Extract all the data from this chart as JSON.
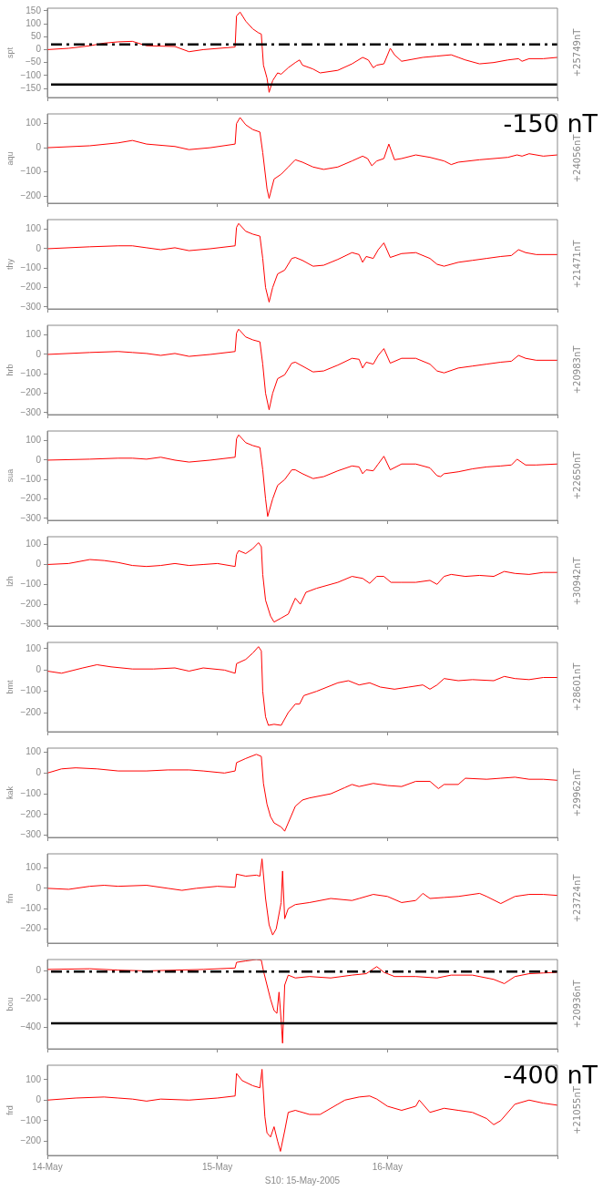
{
  "chart_data": [
    {
      "type": "line",
      "ylabel": "spt",
      "y2label": "+25749nT",
      "color": "#ff0000",
      "xlim": [
        "2005-05-14",
        "2005-05-17"
      ],
      "xticks": [
        {
          "value": "2005-05-14",
          "label": null
        },
        {
          "value": "2005-05-15",
          "label": null
        },
        {
          "value": "2005-05-16",
          "label": null
        },
        {
          "value": "2005-05-17",
          "label": null
        }
      ],
      "ylim": [
        -185,
        160
      ],
      "yticks": [
        -150,
        -100,
        -50,
        0,
        50,
        100,
        150
      ],
      "tick_labels": "y",
      "ref_lines": [
        {
          "axis": "y",
          "value": 20,
          "color": "#000000",
          "line_style": "dashdot"
        },
        {
          "axis": "y",
          "value": -135,
          "color": "#000000",
          "line_style": "solid",
          "label": "-150 nT"
        }
      ],
      "x": [
        "2005-05-14T00:00",
        "2005-05-14T03:00",
        "2005-05-14T06:00",
        "2005-05-14T08:00",
        "2005-05-14T10:00",
        "2005-05-14T12:00",
        "2005-05-14T14:00",
        "2005-05-14T18:00",
        "2005-05-14T20:00",
        "2005-05-14T22:00",
        "2005-05-15T02:30",
        "2005-05-15T02:42",
        "2005-05-15T03:12",
        "2005-05-15T04:00",
        "2005-05-15T05:00",
        "2005-05-15T05:48",
        "2005-05-15T06:12",
        "2005-05-15T06:30",
        "2005-05-15T07:00",
        "2005-05-15T07:18",
        "2005-05-15T07:48",
        "2005-05-15T08:30",
        "2005-05-15T09:00",
        "2005-05-15T10:00",
        "2005-05-15T11:00",
        "2005-05-15T11:36",
        "2005-05-15T12:00",
        "2005-05-15T13:30",
        "2005-05-15T14:30",
        "2005-05-15T17:00",
        "2005-05-15T19:00",
        "2005-05-15T20:30",
        "2005-05-15T21:18",
        "2005-05-15T22:00",
        "2005-05-15T22:30",
        "2005-05-15T23:30",
        "2005-05-16T00:24",
        "2005-05-16T01:00",
        "2005-05-16T02:00",
        "2005-05-16T05:00",
        "2005-05-16T07:00",
        "2005-05-16T09:00",
        "2005-05-16T10:00",
        "2005-05-16T11:00",
        "2005-05-16T13:00",
        "2005-05-16T15:00",
        "2005-05-16T17:00",
        "2005-05-16T18:30",
        "2005-05-16T19:00",
        "2005-05-16T20:00",
        "2005-05-16T22:00",
        "2005-05-17T00:00"
      ],
      "values": [
        0,
        5,
        15,
        25,
        30,
        32,
        15,
        12,
        -8,
        0,
        10,
        130,
        145,
        110,
        80,
        65,
        60,
        -60,
        -110,
        -165,
        -120,
        -90,
        -95,
        -70,
        -50,
        -40,
        -60,
        -75,
        -90,
        -80,
        -55,
        -30,
        -40,
        -70,
        -60,
        -55,
        5,
        -20,
        -45,
        -30,
        -25,
        -20,
        -30,
        -40,
        -55,
        -50,
        -40,
        -35,
        -45,
        -35,
        -35,
        -30
      ]
    },
    {
      "type": "line",
      "ylabel": "aqu",
      "y2label": "+24056nT",
      "color": "#ff0000",
      "xlim": [
        "2005-05-14",
        "2005-05-17"
      ],
      "xticks": [
        {
          "value": "2005-05-14",
          "label": null
        },
        {
          "value": "2005-05-15",
          "label": null
        },
        {
          "value": "2005-05-16",
          "label": null
        },
        {
          "value": "2005-05-17",
          "label": null
        }
      ],
      "ylim": [
        -230,
        140
      ],
      "yticks": [
        -200,
        -100,
        0,
        100
      ],
      "tick_labels": "y",
      "x": [
        "2005-05-14T00:00",
        "2005-05-14T06:00",
        "2005-05-14T10:00",
        "2005-05-14T12:00",
        "2005-05-14T14:00",
        "2005-05-14T18:00",
        "2005-05-14T20:00",
        "2005-05-14T23:00",
        "2005-05-15T02:30",
        "2005-05-15T02:42",
        "2005-05-15T03:12",
        "2005-05-15T04:00",
        "2005-05-15T05:00",
        "2005-05-15T06:00",
        "2005-05-15T06:24",
        "2005-05-15T07:00",
        "2005-05-15T07:18",
        "2005-05-15T08:00",
        "2005-05-15T09:00",
        "2005-05-15T10:00",
        "2005-05-15T11:00",
        "2005-05-15T12:00",
        "2005-05-15T13:30",
        "2005-05-15T15:00",
        "2005-05-15T17:00",
        "2005-05-15T19:00",
        "2005-05-15T20:30",
        "2005-05-15T21:12",
        "2005-05-15T21:48",
        "2005-05-15T22:30",
        "2005-05-15T23:30",
        "2005-05-16T00:12",
        "2005-05-16T01:00",
        "2005-05-16T02:00",
        "2005-05-16T04:00",
        "2005-05-16T06:00",
        "2005-05-16T08:00",
        "2005-05-16T09:00",
        "2005-05-16T10:00",
        "2005-05-16T13:00",
        "2005-05-16T15:00",
        "2005-05-16T17:00",
        "2005-05-16T18:18",
        "2005-05-16T19:00",
        "2005-05-16T20:00",
        "2005-05-16T22:00",
        "2005-05-17T00:00"
      ],
      "values": [
        0,
        8,
        20,
        30,
        15,
        5,
        -8,
        0,
        15,
        100,
        125,
        95,
        75,
        65,
        -20,
        -170,
        -210,
        -130,
        -110,
        -80,
        -50,
        -60,
        -80,
        -90,
        -80,
        -55,
        -35,
        -45,
        -75,
        -55,
        -45,
        15,
        -50,
        -45,
        -30,
        -40,
        -55,
        -70,
        -60,
        -50,
        -45,
        -40,
        -30,
        -35,
        -25,
        -35,
        -30
      ]
    },
    {
      "type": "line",
      "ylabel": "thy",
      "y2label": "+21471nT",
      "color": "#ff0000",
      "xlim": [
        "2005-05-14",
        "2005-05-17"
      ],
      "xticks": [
        {
          "value": "2005-05-14",
          "label": null
        },
        {
          "value": "2005-05-15",
          "label": null
        },
        {
          "value": "2005-05-16",
          "label": null
        },
        {
          "value": "2005-05-17",
          "label": null
        }
      ],
      "ylim": [
        -310,
        150
      ],
      "yticks": [
        -300,
        -200,
        -100,
        0,
        100
      ],
      "tick_labels": "y",
      "x": [
        "2005-05-14T00:00",
        "2005-05-14T06:00",
        "2005-05-14T10:00",
        "2005-05-14T12:00",
        "2005-05-14T14:00",
        "2005-05-14T16:00",
        "2005-05-14T18:00",
        "2005-05-14T20:00",
        "2005-05-14T23:00",
        "2005-05-15T02:30",
        "2005-05-15T02:42",
        "2005-05-15T03:00",
        "2005-05-15T04:00",
        "2005-05-15T05:00",
        "2005-05-15T06:00",
        "2005-05-15T06:24",
        "2005-05-15T06:48",
        "2005-05-15T07:18",
        "2005-05-15T07:48",
        "2005-05-15T08:30",
        "2005-05-15T09:30",
        "2005-05-15T10:30",
        "2005-05-15T11:00",
        "2005-05-15T12:00",
        "2005-05-15T13:30",
        "2005-05-15T15:00",
        "2005-05-15T17:00",
        "2005-05-15T19:00",
        "2005-05-15T20:00",
        "2005-05-15T20:30",
        "2005-05-15T21:00",
        "2005-05-15T22:00",
        "2005-05-15T22:42",
        "2005-05-15T23:30",
        "2005-05-16T00:24",
        "2005-05-16T02:00",
        "2005-05-16T04:00",
        "2005-05-16T06:00",
        "2005-05-16T07:00",
        "2005-05-16T08:00",
        "2005-05-16T10:00",
        "2005-05-16T12:00",
        "2005-05-16T14:00",
        "2005-05-16T16:00",
        "2005-05-16T17:30",
        "2005-05-16T18:30",
        "2005-05-16T19:30",
        "2005-05-16T21:00",
        "2005-05-17T00:00"
      ],
      "values": [
        0,
        10,
        15,
        15,
        5,
        -5,
        5,
        -10,
        0,
        15,
        110,
        130,
        90,
        75,
        65,
        -50,
        -200,
        -275,
        -200,
        -130,
        -110,
        -50,
        -45,
        -60,
        -90,
        -85,
        -55,
        -20,
        -30,
        -70,
        -40,
        -50,
        -5,
        30,
        -45,
        -25,
        -20,
        -50,
        -80,
        -90,
        -70,
        -60,
        -50,
        -40,
        -35,
        -5,
        -20,
        -30,
        -30
      ]
    },
    {
      "type": "line",
      "ylabel": "hrb",
      "y2label": "+20983nT",
      "color": "#ff0000",
      "xlim": [
        "2005-05-14",
        "2005-05-17"
      ],
      "xticks": [
        {
          "value": "2005-05-14",
          "label": null
        },
        {
          "value": "2005-05-15",
          "label": null
        },
        {
          "value": "2005-05-16",
          "label": null
        },
        {
          "value": "2005-05-17",
          "label": null
        }
      ],
      "ylim": [
        -310,
        150
      ],
      "yticks": [
        -300,
        -200,
        -100,
        0,
        100
      ],
      "tick_labels": "y",
      "x": [
        "2005-05-14T00:00",
        "2005-05-14T06:00",
        "2005-05-14T10:00",
        "2005-05-14T12:00",
        "2005-05-14T14:00",
        "2005-05-14T16:00",
        "2005-05-14T18:00",
        "2005-05-14T20:00",
        "2005-05-14T23:00",
        "2005-05-15T02:30",
        "2005-05-15T02:42",
        "2005-05-15T03:00",
        "2005-05-15T04:00",
        "2005-05-15T05:00",
        "2005-05-15T06:00",
        "2005-05-15T06:24",
        "2005-05-15T06:48",
        "2005-05-15T07:18",
        "2005-05-15T07:48",
        "2005-05-15T08:30",
        "2005-05-15T09:30",
        "2005-05-15T10:30",
        "2005-05-15T11:00",
        "2005-05-15T12:00",
        "2005-05-15T13:30",
        "2005-05-15T15:00",
        "2005-05-15T17:00",
        "2005-05-15T19:00",
        "2005-05-15T20:00",
        "2005-05-15T20:30",
        "2005-05-15T21:00",
        "2005-05-15T22:00",
        "2005-05-15T22:42",
        "2005-05-15T23:30",
        "2005-05-16T00:24",
        "2005-05-16T02:00",
        "2005-05-16T04:00",
        "2005-05-16T06:00",
        "2005-05-16T07:00",
        "2005-05-16T08:00",
        "2005-05-16T10:00",
        "2005-05-16T12:00",
        "2005-05-16T14:00",
        "2005-05-16T16:00",
        "2005-05-16T17:30",
        "2005-05-16T18:30",
        "2005-05-16T19:30",
        "2005-05-16T21:00",
        "2005-05-17T00:00"
      ],
      "values": [
        0,
        10,
        15,
        10,
        5,
        -5,
        5,
        -10,
        0,
        15,
        110,
        130,
        90,
        75,
        65,
        -50,
        -200,
        -285,
        -200,
        -125,
        -105,
        -45,
        -40,
        -60,
        -90,
        -85,
        -55,
        -20,
        -25,
        -70,
        -40,
        -50,
        -5,
        30,
        -45,
        -20,
        -20,
        -50,
        -85,
        -95,
        -70,
        -60,
        -50,
        -40,
        -35,
        -5,
        -20,
        -30,
        -30
      ]
    },
    {
      "type": "line",
      "ylabel": "sua",
      "y2label": "+22650nT",
      "color": "#ff0000",
      "xlim": [
        "2005-05-14",
        "2005-05-17"
      ],
      "xticks": [
        {
          "value": "2005-05-14",
          "label": null
        },
        {
          "value": "2005-05-15",
          "label": null
        },
        {
          "value": "2005-05-16",
          "label": null
        },
        {
          "value": "2005-05-17",
          "label": null
        }
      ],
      "ylim": [
        -310,
        150
      ],
      "yticks": [
        -300,
        -200,
        -100,
        0,
        100
      ],
      "tick_labels": "y",
      "x": [
        "2005-05-14T00:00",
        "2005-05-14T06:00",
        "2005-05-14T10:00",
        "2005-05-14T12:00",
        "2005-05-14T14:00",
        "2005-05-14T16:00",
        "2005-05-14T18:00",
        "2005-05-14T20:00",
        "2005-05-14T23:00",
        "2005-05-15T02:30",
        "2005-05-15T02:42",
        "2005-05-15T03:00",
        "2005-05-15T04:00",
        "2005-05-15T05:00",
        "2005-05-15T06:00",
        "2005-05-15T06:24",
        "2005-05-15T06:48",
        "2005-05-15T07:06",
        "2005-05-15T07:48",
        "2005-05-15T08:30",
        "2005-05-15T09:30",
        "2005-05-15T10:30",
        "2005-05-15T11:00",
        "2005-05-15T12:00",
        "2005-05-15T13:30",
        "2005-05-15T15:00",
        "2005-05-15T17:00",
        "2005-05-15T19:00",
        "2005-05-15T20:00",
        "2005-05-15T20:30",
        "2005-05-15T21:00",
        "2005-05-15T22:00",
        "2005-05-15T22:42",
        "2005-05-15T23:30",
        "2005-05-16T00:24",
        "2005-05-16T02:00",
        "2005-05-16T04:00",
        "2005-05-16T06:00",
        "2005-05-16T07:00",
        "2005-05-16T07:30",
        "2005-05-16T08:00",
        "2005-05-16T10:00",
        "2005-05-16T12:00",
        "2005-05-16T14:00",
        "2005-05-16T16:00",
        "2005-05-16T17:30",
        "2005-05-16T18:18",
        "2005-05-16T19:30",
        "2005-05-16T21:00",
        "2005-05-17T00:00"
      ],
      "values": [
        0,
        5,
        10,
        10,
        5,
        15,
        0,
        -10,
        0,
        15,
        110,
        130,
        90,
        75,
        65,
        -50,
        -200,
        -290,
        -200,
        -130,
        -100,
        -50,
        -50,
        -70,
        -95,
        -85,
        -55,
        -30,
        -35,
        -70,
        -50,
        -55,
        -20,
        20,
        -50,
        -20,
        -20,
        -40,
        -80,
        -85,
        -70,
        -60,
        -45,
        -35,
        -30,
        -25,
        5,
        -25,
        -25,
        -20
      ]
    },
    {
      "type": "line",
      "ylabel": "lzh",
      "y2label": "+30942nT",
      "color": "#ff0000",
      "xlim": [
        "2005-05-14",
        "2005-05-17"
      ],
      "xticks": [
        {
          "value": "2005-05-14",
          "label": null
        },
        {
          "value": "2005-05-15",
          "label": null
        },
        {
          "value": "2005-05-16",
          "label": null
        },
        {
          "value": "2005-05-17",
          "label": null
        }
      ],
      "ylim": [
        -310,
        140
      ],
      "yticks": [
        -300,
        -200,
        -100,
        0,
        100
      ],
      "tick_labels": "y",
      "x": [
        "2005-05-14T00:00",
        "2005-05-14T03:00",
        "2005-05-14T06:00",
        "2005-05-14T08:00",
        "2005-05-14T10:00",
        "2005-05-14T12:00",
        "2005-05-14T14:00",
        "2005-05-14T16:00",
        "2005-05-14T18:00",
        "2005-05-14T20:00",
        "2005-05-14T22:00",
        "2005-05-15T00:00",
        "2005-05-15T02:30",
        "2005-05-15T02:42",
        "2005-05-15T03:00",
        "2005-05-15T04:00",
        "2005-05-15T05:00",
        "2005-05-15T05:48",
        "2005-05-15T06:12",
        "2005-05-15T06:24",
        "2005-05-15T06:48",
        "2005-05-15T07:30",
        "2005-05-15T08:00",
        "2005-05-15T09:00",
        "2005-05-15T10:00",
        "2005-05-15T11:00",
        "2005-05-15T11:42",
        "2005-05-15T12:30",
        "2005-05-15T14:00",
        "2005-05-15T17:00",
        "2005-05-15T19:00",
        "2005-05-15T20:30",
        "2005-05-15T21:30",
        "2005-05-15T22:30",
        "2005-05-15T23:30",
        "2005-05-16T00:30",
        "2005-05-16T02:00",
        "2005-05-16T04:00",
        "2005-05-16T06:00",
        "2005-05-16T07:00",
        "2005-05-16T08:00",
        "2005-05-16T09:00",
        "2005-05-16T11:00",
        "2005-05-16T13:00",
        "2005-05-16T15:00",
        "2005-05-16T16:30",
        "2005-05-16T18:00",
        "2005-05-16T20:00",
        "2005-05-16T22:00",
        "2005-05-17T00:00"
      ],
      "values": [
        0,
        5,
        25,
        20,
        10,
        -5,
        -10,
        -5,
        5,
        -5,
        0,
        5,
        -10,
        50,
        70,
        55,
        80,
        110,
        90,
        -50,
        -180,
        -260,
        -290,
        -270,
        -250,
        -170,
        -200,
        -140,
        -120,
        -90,
        -60,
        -70,
        -95,
        -60,
        -60,
        -90,
        -90,
        -90,
        -80,
        -100,
        -60,
        -50,
        -60,
        -55,
        -60,
        -35,
        -45,
        -50,
        -40,
        -40
      ]
    },
    {
      "type": "line",
      "ylabel": "bmt",
      "y2label": "+28601nT",
      "color": "#ff0000",
      "xlim": [
        "2005-05-14",
        "2005-05-17"
      ],
      "xticks": [
        {
          "value": "2005-05-14",
          "label": null
        },
        {
          "value": "2005-05-15",
          "label": null
        },
        {
          "value": "2005-05-16",
          "label": null
        },
        {
          "value": "2005-05-17",
          "label": null
        }
      ],
      "ylim": [
        -290,
        130
      ],
      "yticks": [
        -200,
        -100,
        0,
        100
      ],
      "tick_labels": "y",
      "x": [
        "2005-05-14T00:00",
        "2005-05-14T02:00",
        "2005-05-14T05:00",
        "2005-05-14T07:00",
        "2005-05-14T09:00",
        "2005-05-14T12:00",
        "2005-05-14T15:00",
        "2005-05-14T18:00",
        "2005-05-14T20:00",
        "2005-05-14T22:00",
        "2005-05-15T01:00",
        "2005-05-15T02:30",
        "2005-05-15T02:42",
        "2005-05-15T04:00",
        "2005-05-15T05:00",
        "2005-05-15T05:48",
        "2005-05-15T06:12",
        "2005-05-15T06:24",
        "2005-05-15T06:48",
        "2005-05-15T07:12",
        "2005-05-15T08:00",
        "2005-05-15T09:00",
        "2005-05-15T10:00",
        "2005-05-15T11:00",
        "2005-05-15T11:36",
        "2005-05-15T12:12",
        "2005-05-15T14:00",
        "2005-05-15T17:00",
        "2005-05-15T18:30",
        "2005-05-15T20:00",
        "2005-05-15T21:30",
        "2005-05-15T23:00",
        "2005-05-16T01:00",
        "2005-05-16T03:00",
        "2005-05-16T05:00",
        "2005-05-16T06:00",
        "2005-05-16T07:00",
        "2005-05-16T08:00",
        "2005-05-16T10:00",
        "2005-05-16T12:00",
        "2005-05-16T15:00",
        "2005-05-16T16:30",
        "2005-05-16T18:00",
        "2005-05-16T20:00",
        "2005-05-16T22:00",
        "2005-05-17T00:00"
      ],
      "values": [
        -5,
        -15,
        10,
        25,
        15,
        5,
        5,
        10,
        -5,
        10,
        0,
        -15,
        30,
        50,
        80,
        110,
        90,
        -100,
        -220,
        -260,
        -255,
        -260,
        -200,
        -160,
        -160,
        -120,
        -100,
        -60,
        -50,
        -70,
        -60,
        -80,
        -90,
        -80,
        -70,
        -90,
        -70,
        -40,
        -50,
        -45,
        -50,
        -30,
        -40,
        -45,
        -35,
        -35
      ]
    },
    {
      "type": "line",
      "ylabel": "kak",
      "y2label": "+29962nT",
      "color": "#ff0000",
      "xlim": [
        "2005-05-14",
        "2005-05-17"
      ],
      "xticks": [
        {
          "value": "2005-05-14",
          "label": null
        },
        {
          "value": "2005-05-15",
          "label": null
        },
        {
          "value": "2005-05-16",
          "label": null
        },
        {
          "value": "2005-05-17",
          "label": null
        }
      ],
      "ylim": [
        -310,
        120
      ],
      "yticks": [
        -300,
        -200,
        -100,
        0,
        100
      ],
      "tick_labels": "y",
      "x": [
        "2005-05-14T00:00",
        "2005-05-14T02:00",
        "2005-05-14T04:00",
        "2005-05-14T07:00",
        "2005-05-14T10:00",
        "2005-05-14T14:00",
        "2005-05-14T17:00",
        "2005-05-14T20:00",
        "2005-05-14T22:00",
        "2005-05-15T01:00",
        "2005-05-15T02:30",
        "2005-05-15T02:42",
        "2005-05-15T04:00",
        "2005-05-15T05:30",
        "2005-05-15T06:12",
        "2005-05-15T06:30",
        "2005-05-15T07:00",
        "2005-05-15T07:30",
        "2005-05-15T08:00",
        "2005-05-15T09:00",
        "2005-05-15T09:30",
        "2005-05-15T10:00",
        "2005-05-15T11:00",
        "2005-05-15T12:00",
        "2005-05-15T13:00",
        "2005-05-15T16:00",
        "2005-05-15T18:00",
        "2005-05-15T19:00",
        "2005-05-15T20:00",
        "2005-05-15T22:00",
        "2005-05-16T00:00",
        "2005-05-16T02:00",
        "2005-05-16T04:00",
        "2005-05-16T06:00",
        "2005-05-16T07:12",
        "2005-05-16T08:00",
        "2005-05-16T10:00",
        "2005-05-16T11:00",
        "2005-05-16T14:00",
        "2005-05-16T16:00",
        "2005-05-16T18:00",
        "2005-05-16T20:00",
        "2005-05-16T22:00",
        "2005-05-17T00:00"
      ],
      "values": [
        0,
        20,
        25,
        20,
        10,
        10,
        15,
        15,
        10,
        0,
        10,
        50,
        70,
        90,
        80,
        -50,
        -150,
        -210,
        -240,
        -260,
        -280,
        -240,
        -160,
        -130,
        -120,
        -100,
        -70,
        -55,
        -65,
        -50,
        -60,
        -65,
        -40,
        -40,
        -75,
        -55,
        -55,
        -25,
        -30,
        -25,
        -20,
        -30,
        -30,
        -35
      ]
    },
    {
      "type": "line",
      "ylabel": "frn",
      "y2label": "+23724nT",
      "color": "#ff0000",
      "xlim": [
        "2005-05-14",
        "2005-05-17"
      ],
      "xticks": [
        {
          "value": "2005-05-14",
          "label": null
        },
        {
          "value": "2005-05-15",
          "label": null
        },
        {
          "value": "2005-05-16",
          "label": null
        },
        {
          "value": "2005-05-17",
          "label": null
        }
      ],
      "ylim": [
        -270,
        170
      ],
      "yticks": [
        -200,
        -100,
        0,
        100
      ],
      "tick_labels": "y",
      "x": [
        "2005-05-14T00:00",
        "2005-05-14T03:00",
        "2005-05-14T06:00",
        "2005-05-14T08:00",
        "2005-05-14T10:00",
        "2005-05-14T14:00",
        "2005-05-14T17:00",
        "2005-05-14T19:00",
        "2005-05-14T21:00",
        "2005-05-15T00:00",
        "2005-05-15T02:30",
        "2005-05-15T02:42",
        "2005-05-15T04:00",
        "2005-05-15T05:30",
        "2005-05-15T06:00",
        "2005-05-15T06:18",
        "2005-05-15T06:48",
        "2005-05-15T07:18",
        "2005-05-15T07:48",
        "2005-05-15T08:18",
        "2005-05-15T09:00",
        "2005-05-15T09:12",
        "2005-05-15T09:30",
        "2005-05-15T10:00",
        "2005-05-15T11:00",
        "2005-05-15T13:00",
        "2005-05-15T16:00",
        "2005-05-15T19:00",
        "2005-05-15T20:00",
        "2005-05-15T21:00",
        "2005-05-15T22:00",
        "2005-05-16T00:00",
        "2005-05-16T02:00",
        "2005-05-16T04:00",
        "2005-05-16T05:00",
        "2005-05-16T06:00",
        "2005-05-16T08:00",
        "2005-05-16T10:00",
        "2005-05-16T13:00",
        "2005-05-16T14:00",
        "2005-05-16T16:00",
        "2005-05-16T18:00",
        "2005-05-16T20:00",
        "2005-05-16T22:00",
        "2005-05-17T00:00"
      ],
      "values": [
        0,
        -5,
        10,
        15,
        10,
        15,
        0,
        -10,
        0,
        10,
        5,
        70,
        60,
        65,
        60,
        145,
        -50,
        -180,
        -230,
        -200,
        -70,
        85,
        -150,
        -100,
        -80,
        -70,
        -50,
        -60,
        -50,
        -40,
        -30,
        -40,
        -70,
        -60,
        -25,
        -50,
        -45,
        -40,
        -25,
        -40,
        -75,
        -40,
        -30,
        -30,
        -35
      ]
    },
    {
      "type": "line",
      "ylabel": "bou",
      "y2label": "+20936nT",
      "color": "#ff0000",
      "xlim": [
        "2005-05-14",
        "2005-05-17"
      ],
      "xticks": [
        {
          "value": "2005-05-14",
          "label": null
        },
        {
          "value": "2005-05-15",
          "label": null
        },
        {
          "value": "2005-05-16",
          "label": null
        },
        {
          "value": "2005-05-17",
          "label": null
        }
      ],
      "ylim": [
        -550,
        80
      ],
      "yticks": [
        -400,
        -200,
        0
      ],
      "tick_labels": "y",
      "ref_lines": [
        {
          "axis": "y",
          "value": -5,
          "color": "#000000",
          "line_style": "dashdot"
        },
        {
          "axis": "y",
          "value": -370,
          "color": "#000000",
          "line_style": "solid",
          "label": "-400 nT"
        }
      ],
      "x": [
        "2005-05-14T00:00",
        "2005-05-14T06:00",
        "2005-05-14T10:00",
        "2005-05-14T14:00",
        "2005-05-14T18:00",
        "2005-05-14T22:00",
        "2005-05-15T02:30",
        "2005-05-15T02:42",
        "2005-05-15T04:00",
        "2005-05-15T05:30",
        "2005-05-15T06:12",
        "2005-05-15T06:30",
        "2005-05-15T07:00",
        "2005-05-15T07:30",
        "2005-05-15T08:00",
        "2005-05-15T08:24",
        "2005-05-15T08:42",
        "2005-05-15T09:00",
        "2005-05-15T09:12",
        "2005-05-15T09:30",
        "2005-05-15T10:00",
        "2005-05-15T11:00",
        "2005-05-15T13:00",
        "2005-05-15T16:00",
        "2005-05-15T19:00",
        "2005-05-15T21:00",
        "2005-05-15T22:30",
        "2005-05-15T23:30",
        "2005-05-16T01:00",
        "2005-05-16T04:00",
        "2005-05-16T07:00",
        "2005-05-16T09:00",
        "2005-05-16T12:00",
        "2005-05-16T15:00",
        "2005-05-16T16:30",
        "2005-05-16T18:00",
        "2005-05-16T20:00",
        "2005-05-16T22:00",
        "2005-05-17T00:00"
      ],
      "values": [
        10,
        15,
        5,
        0,
        5,
        10,
        20,
        60,
        70,
        80,
        75,
        0,
        -100,
        -200,
        -280,
        -300,
        -150,
        -350,
        -510,
        -100,
        -30,
        -50,
        -40,
        -50,
        -30,
        -20,
        30,
        -10,
        -40,
        -40,
        -50,
        -30,
        -30,
        -60,
        -90,
        -40,
        -20,
        -15,
        -10
      ]
    },
    {
      "type": "line",
      "ylabel": "frd",
      "y2label": "+21055nT",
      "xlabel": "S10: 15-May-2005",
      "color": "#ff0000",
      "xlim": [
        "2005-05-14",
        "2005-05-17"
      ],
      "xticks": [
        {
          "value": "2005-05-14",
          "label": "14-May"
        },
        {
          "value": "2005-05-15",
          "label": "15-May"
        },
        {
          "value": "2005-05-16",
          "label": "16-May"
        },
        {
          "value": "2005-05-17",
          "label": null
        }
      ],
      "ylim": [
        -270,
        170
      ],
      "yticks": [
        -200,
        -100,
        0,
        100
      ],
      "x": [
        "2005-05-14T00:00",
        "2005-05-14T04:00",
        "2005-05-14T08:00",
        "2005-05-14T10:00",
        "2005-05-14T12:00",
        "2005-05-14T14:00",
        "2005-05-14T16:00",
        "2005-05-14T20:00",
        "2005-05-15T00:00",
        "2005-05-15T02:30",
        "2005-05-15T02:42",
        "2005-05-15T03:30",
        "2005-05-15T05:00",
        "2005-05-15T06:00",
        "2005-05-15T06:18",
        "2005-05-15T06:42",
        "2005-05-15T07:00",
        "2005-05-15T07:30",
        "2005-05-15T08:00",
        "2005-05-15T08:30",
        "2005-05-15T08:54",
        "2005-05-15T09:30",
        "2005-05-15T10:00",
        "2005-05-15T11:00",
        "2005-05-15T13:00",
        "2005-05-15T14:30",
        "2005-05-15T17:00",
        "2005-05-15T18:00",
        "2005-05-15T20:00",
        "2005-05-15T21:30",
        "2005-05-15T22:30",
        "2005-05-16T00:00",
        "2005-05-16T02:00",
        "2005-05-16T04:00",
        "2005-05-16T04:30",
        "2005-05-16T06:00",
        "2005-05-16T08:00",
        "2005-05-16T10:00",
        "2005-05-16T12:00",
        "2005-05-16T14:00",
        "2005-05-16T15:00",
        "2005-05-16T16:00",
        "2005-05-16T18:00",
        "2005-05-16T20:00",
        "2005-05-16T22:00",
        "2005-05-17T00:00"
      ],
      "values": [
        0,
        10,
        15,
        10,
        5,
        -5,
        5,
        0,
        10,
        20,
        130,
        95,
        70,
        60,
        150,
        -80,
        -160,
        -180,
        -130,
        -200,
        -250,
        -150,
        -60,
        -50,
        -70,
        -70,
        -20,
        0,
        15,
        20,
        5,
        -30,
        -50,
        -30,
        0,
        -60,
        -40,
        -50,
        -60,
        -90,
        -120,
        -100,
        -20,
        0,
        -15,
        -25
      ]
    }
  ]
}
